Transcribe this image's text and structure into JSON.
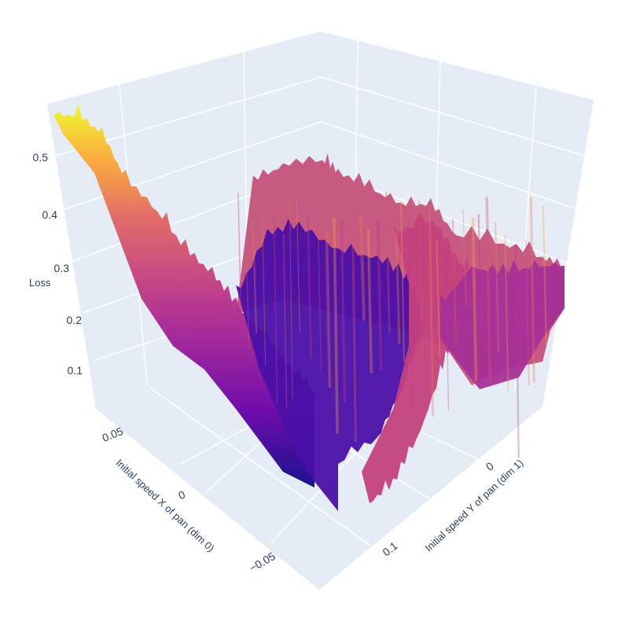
{
  "chart_data": {
    "type": "surface",
    "title": "",
    "colorscale": [
      "#0d0887",
      "#46039f",
      "#7201a8",
      "#9c179e",
      "#bd3786",
      "#d8576b",
      "#ed7953",
      "#fb9f3a",
      "#fdca26",
      "#f0f921"
    ],
    "background_color": "#e5ecf6",
    "grid_color": "#ffffff",
    "axis_text_color": "#2a3f5f",
    "x_axis": {
      "title": "Initial speed X of pan (dim 0)",
      "ticks": [
        "0.05",
        "0",
        "−0.05"
      ],
      "range": [
        -0.08,
        0.08
      ]
    },
    "y_axis": {
      "title": "Initial speed Y of pan (dim 1)",
      "ticks": [
        "0",
        "0.1"
      ],
      "range": [
        -0.12,
        0.14
      ]
    },
    "z_axis": {
      "title": "Loss",
      "ticks": [
        "0.1",
        "0.2",
        "0.3",
        "0.4",
        "0.5"
      ],
      "range": [
        0.02,
        0.6
      ]
    },
    "surface_profile": {
      "x_near_0.08_loss": 0.56,
      "x_0_y_0_loss": 0.18,
      "minimum_loss": 0.03,
      "far_ridge_loss": 0.42,
      "right_edge_loss": 0.3
    }
  }
}
